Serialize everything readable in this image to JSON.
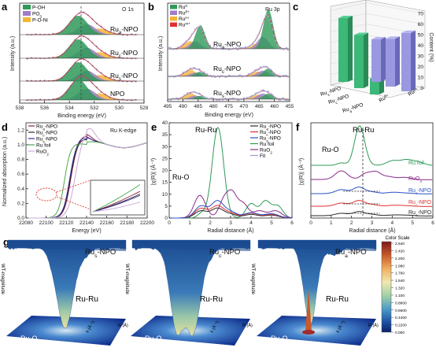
{
  "panels": {
    "a": {
      "label": "a",
      "corner_label": "O 1s",
      "legend": [
        {
          "name": "P-OH",
          "color": "#2e9a58"
        },
        {
          "name": "PO",
          "sub": "3",
          "color": "#9e7cc8"
        },
        {
          "name": "P-O-Ni",
          "color": "#f2b634"
        }
      ],
      "samples": [
        {
          "prefix": "Ru",
          "sub": "a",
          "suffix": "-NPO"
        },
        {
          "prefix": "Ru",
          "sub": "c",
          "suffix": "-NPO"
        },
        {
          "prefix": "Ru",
          "sub": "s",
          "suffix": "-NPO"
        },
        {
          "prefix": "NPO",
          "sub": "",
          "suffix": ""
        }
      ],
      "xlabel": "Binding energy (eV)",
      "ylabel": "Intensity (a.u.)",
      "xticks": [
        "538",
        "536",
        "534",
        "532",
        "530",
        "528"
      ]
    },
    "b": {
      "label": "b",
      "corner_label": "Ru 3p",
      "legend": [
        {
          "name": "Ru",
          "sup": "0",
          "color": "#2e9a58"
        },
        {
          "name": "Ru",
          "sup": "δ+",
          "color": "#9e7cc8"
        },
        {
          "name": "Ru",
          "sup": "n+",
          "color": "#f2b634"
        },
        {
          "name": "Ru",
          "sup": "m+",
          "color": "#e03030"
        }
      ],
      "samples": [
        {
          "prefix": "Ru",
          "sub": "a",
          "suffix": "-NPO"
        },
        {
          "prefix": "Ru",
          "sub": "c",
          "suffix": "-NPO"
        },
        {
          "prefix": "Ru",
          "sub": "s",
          "suffix": "-NPO"
        }
      ],
      "xlabel": "Binding energy (eV)",
      "ylabel": "Intensity (a.u.)",
      "xticks": [
        "495",
        "490",
        "485",
        "480",
        "475",
        "470",
        "465",
        "460",
        "455"
      ]
    },
    "c": {
      "label": "c",
      "ylabel": "Content (%)",
      "yticks": [
        "0",
        "10",
        "20",
        "30",
        "40",
        "50",
        "60",
        "70"
      ],
      "categories": [
        {
          "prefix": "Ru",
          "sub": "s",
          "suffix": "-NPO"
        },
        {
          "prefix": "Ru",
          "sub": "c",
          "suffix": "-NPO"
        },
        {
          "prefix": "Ru",
          "sub": "a",
          "suffix": "-NPO"
        }
      ],
      "depth_labels": [
        {
          "name": "Ru",
          "sup": "δ+"
        },
        {
          "name": "Ru",
          "sup": "n+"
        }
      ]
    },
    "d": {
      "label": "d",
      "corner_label": "Ru K-edge",
      "legend": [
        {
          "prefix": "Ru",
          "sub": "a",
          "suffix": "-NPO",
          "color": "#8a2040"
        },
        {
          "prefix": "Ru",
          "sub": "c",
          "suffix": "-NPO",
          "color": "#2a2a2a"
        },
        {
          "prefix": "Ru",
          "sub": "s",
          "suffix": "-NPO",
          "color": "#3a2a9a"
        },
        {
          "prefix": "Ru foil",
          "sub": "",
          "suffix": "",
          "color": "#4aa84a"
        },
        {
          "prefix": "RuO",
          "sub": "2",
          "suffix": "",
          "color": "#c9a8d8"
        }
      ],
      "xlabel": "Energy (eV)",
      "ylabel": "Normalized absorption (a.u.)",
      "xticks": [
        "22080",
        "22100",
        "22120",
        "22140",
        "22160",
        "22180",
        "22200"
      ],
      "yticks": [
        "0.0",
        "0.2",
        "0.4",
        "0.6",
        "0.8",
        "1.0",
        "1.2"
      ]
    },
    "e": {
      "label": "e",
      "peak_ru_ru": "Ru-Ru",
      "peak_ru_o": "Ru-O",
      "legend": [
        {
          "prefix": "Ru",
          "sub": "a",
          "suffix": "-NPO",
          "color": "#2a2a2a"
        },
        {
          "prefix": "Ru",
          "sub": "c",
          "suffix": "-NPO",
          "color": "#e03030"
        },
        {
          "prefix": "Ru",
          "sub": "s",
          "suffix": "-NPO",
          "color": "#2a50c8"
        },
        {
          "prefix": "Ru foil",
          "sub": "",
          "suffix": "",
          "color": "#2e9a58"
        },
        {
          "prefix": "RuO",
          "sub": "2",
          "suffix": "",
          "color": "#8a2a8a"
        },
        {
          "prefix": "Fit",
          "sub": "",
          "suffix": "",
          "color": "#9a9ad8"
        }
      ],
      "xlabel": "Radial distance (Å)",
      "ylabel": "|χ(R)| (Å⁻³)",
      "xticks": [
        "0",
        "1",
        "2",
        "3",
        "4",
        "5",
        "6"
      ],
      "yticks": [
        "0",
        "5",
        "10",
        "15",
        "20",
        "25",
        "30",
        "35",
        "40"
      ]
    },
    "f": {
      "label": "f",
      "peak_ru_ru": "Ru-Ru",
      "peak_ru_o": "Ru-O",
      "series_labels": [
        {
          "prefix": "Ru foil",
          "sub": "",
          "suffix": "",
          "color": "#2e9a58"
        },
        {
          "prefix": "RuO",
          "sub": "2",
          "suffix": "",
          "color": "#8a2a8a"
        },
        {
          "prefix": "Ru",
          "sub": "s",
          "suffix": "-NPO",
          "color": "#2a50c8"
        },
        {
          "prefix": "Ru",
          "sub": "c",
          "suffix": "-NPO",
          "color": "#e03030"
        },
        {
          "prefix": "Ru",
          "sub": "a",
          "suffix": "-NPO",
          "color": "#2a2a2a"
        }
      ],
      "xlabel": "Radial distance (Å)",
      "ylabel": "|χ(R)| (Å⁻³)",
      "xticks": [
        "0",
        "1",
        "2",
        "3",
        "4",
        "5",
        "6"
      ]
    },
    "g": {
      "label": "g",
      "plots": [
        {
          "title_prefix": "Ru",
          "title_sub": "s",
          "title_suffix": "-NPO",
          "peak": "Ru-Ru",
          "low": "Ru-O"
        },
        {
          "title_prefix": "Ru",
          "title_sub": "c",
          "title_suffix": "-NPO",
          "peak": "Ru-Ru",
          "low": "Ru-O"
        },
        {
          "title_prefix": "Ru",
          "title_sub": "a",
          "title_suffix": "-NPO",
          "peak": "Ru-Ru",
          "low": "Ru-O"
        }
      ],
      "zlabel": "WT-magnitude",
      "rlabel": "R (Å)",
      "klabel": "k (Å⁻¹)",
      "colorbar": {
        "title": "Color Scale",
        "ticks": [
          "2.640",
          "2.420",
          "2.200",
          "1.980",
          "1.760",
          "1.540",
          "1.320",
          "1.100",
          "0.8800",
          "0.6600",
          "0.4400",
          "0.2200",
          "0.000"
        ],
        "colors": [
          "#7a1a1a",
          "#b8401a",
          "#e07a30",
          "#f0b060",
          "#f6d890",
          "#e8ecaa",
          "#b8dca0",
          "#7cc0a8",
          "#4aa0c0",
          "#2a7cc0",
          "#1a5aa8",
          "#103a88",
          "#0a2268"
        ]
      }
    }
  },
  "chart_data": [
    {
      "type": "line",
      "title": "O 1s",
      "xlabel": "Binding energy (eV)",
      "ylabel": "Intensity (a.u.)",
      "xlim": [
        538,
        528
      ],
      "series": [
        {
          "name": "P-OH",
          "x": [
            533.3
          ],
          "values": [
            1
          ]
        },
        {
          "name": "PO3",
          "x": [
            532.6
          ],
          "values": [
            0.7
          ]
        },
        {
          "name": "P-O-Ni",
          "x": [
            531.6
          ],
          "values": [
            0.4
          ]
        }
      ],
      "categories": [
        "Ru_a-NPO",
        "Ru_c-NPO",
        "Ru_s-NPO",
        "NPO"
      ],
      "reference_line_x": 533.3
    },
    {
      "type": "line",
      "title": "Ru 3p",
      "xlabel": "Binding energy (eV)",
      "ylabel": "Intensity (a.u.)",
      "xlim": [
        495,
        455
      ],
      "series": [
        {
          "name": "Ru0",
          "x": [
            462.0,
            484.3
          ]
        },
        {
          "name": "Ruδ+",
          "x": [
            463.5,
            485.8
          ]
        },
        {
          "name": "Run+",
          "x": [
            465.5,
            487.5
          ]
        },
        {
          "name": "Rum+",
          "x": [
            467.0,
            489.0
          ]
        }
      ],
      "categories": [
        "Ru_a-NPO",
        "Ru_c-NPO",
        "Ru_s-NPO"
      ]
    },
    {
      "type": "bar",
      "ylabel": "Content (%)",
      "ylim": [
        0,
        70
      ],
      "categories": [
        "Ru_s-NPO",
        "Ru_c-NPO",
        "Ru_a-NPO"
      ],
      "series": [
        {
          "name": "Ruδ+",
          "values": [
            60,
            50,
            15
          ]
        },
        {
          "name": "Run+",
          "values": [
            40,
            45,
            55
          ]
        }
      ]
    },
    {
      "type": "line",
      "title": "Ru K-edge",
      "xlabel": "Energy (eV)",
      "ylabel": "Normalized absorption (a.u.)",
      "xlim": [
        22080,
        22200
      ],
      "ylim": [
        0,
        1.2
      ],
      "series": [
        {
          "name": "Ru_a-NPO",
          "edge": 22125
        },
        {
          "name": "Ru_c-NPO",
          "edge": 22124
        },
        {
          "name": "Ru_s-NPO",
          "edge": 22123
        },
        {
          "name": "Ru foil",
          "edge": 22118
        },
        {
          "name": "RuO2",
          "edge": 22128
        }
      ]
    },
    {
      "type": "line",
      "xlabel": "Radial distance (Å)",
      "ylabel": "|χ(R)| (Å⁻³)",
      "xlim": [
        0,
        6
      ],
      "ylim": [
        0,
        40
      ],
      "series": [
        {
          "name": "Ru foil",
          "peak_x": 2.4,
          "peak_y": 38
        },
        {
          "name": "RuO2",
          "peak_x": 1.5,
          "peak_y": 10
        },
        {
          "name": "Ru_a-NPO",
          "peak_x": 2.4,
          "peak_y": 4
        },
        {
          "name": "Ru_c-NPO",
          "peak_x": 2.4,
          "peak_y": 5
        },
        {
          "name": "Ru_s-NPO",
          "peak_x": 2.4,
          "peak_y": 7
        }
      ]
    },
    {
      "type": "line",
      "xlabel": "Radial distance (Å)",
      "ylabel": "|χ(R)| (Å⁻³)",
      "xlim": [
        0,
        6
      ],
      "series": [
        {
          "name": "Ru foil",
          "peak_x": 2.4
        },
        {
          "name": "RuO2",
          "peak_x": 1.5
        },
        {
          "name": "Ru_s-NPO",
          "peak_x": 2.3
        },
        {
          "name": "Ru_c-NPO",
          "peak_x": 2.3
        },
        {
          "name": "Ru_a-NPO",
          "peak_x": 2.3
        }
      ]
    },
    {
      "type": "heatmap",
      "series": [
        {
          "name": "Ru_s-NPO"
        },
        {
          "name": "Ru_c-NPO"
        },
        {
          "name": "Ru_a-NPO"
        }
      ],
      "zlim": [
        0,
        2.64
      ]
    }
  ]
}
